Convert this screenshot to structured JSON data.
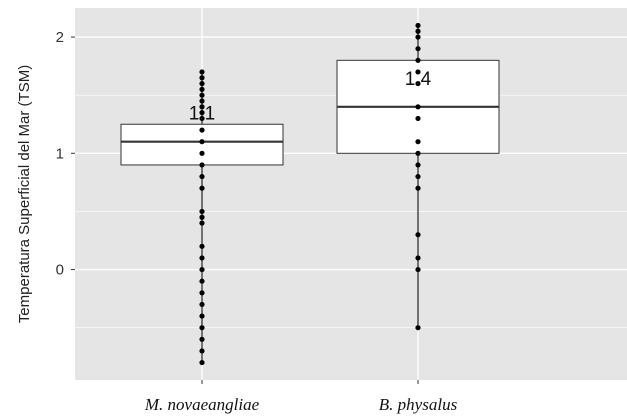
{
  "chart_data": {
    "type": "boxplot",
    "title": "",
    "xlabel": "",
    "ylabel": "Temperatura Superficial del Mar (TSM)",
    "ylim": [
      -0.95,
      2.25
    ],
    "yticks": [
      0,
      1,
      2
    ],
    "grid": true,
    "panel_background": "#e5e5e5",
    "categories": [
      "M. novaeangliae",
      "B. physalus"
    ],
    "boxes": [
      {
        "category": "M. novaeangliae",
        "q1": 0.9,
        "median": 1.1,
        "q3": 1.25,
        "whisker_low": -0.8,
        "whisker_high": 1.7,
        "median_label": "1.1",
        "points": [
          1.7,
          1.65,
          1.6,
          1.55,
          1.5,
          1.45,
          1.4,
          1.35,
          1.3,
          1.2,
          1.1,
          1.0,
          0.9,
          0.8,
          0.7,
          0.5,
          0.45,
          0.4,
          0.2,
          0.1,
          0.0,
          -0.1,
          -0.2,
          -0.3,
          -0.4,
          -0.5,
          -0.6,
          -0.7,
          -0.8
        ]
      },
      {
        "category": "B. physalus",
        "q1": 1.0,
        "median": 1.4,
        "q3": 1.8,
        "whisker_low": -0.5,
        "whisker_high": 2.1,
        "median_label": "1.4",
        "points": [
          2.1,
          2.05,
          2.0,
          1.9,
          1.8,
          1.7,
          1.6,
          1.4,
          1.3,
          1.1,
          1.0,
          0.9,
          0.8,
          0.7,
          0.3,
          0.1,
          0.0,
          -0.5
        ]
      }
    ]
  }
}
